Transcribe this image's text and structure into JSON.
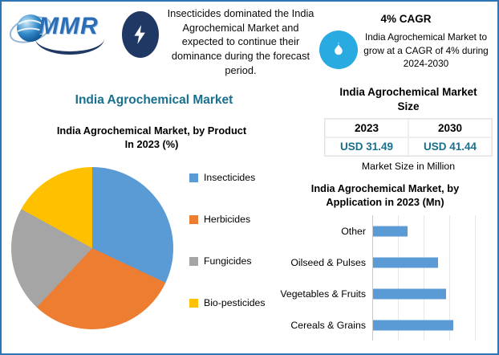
{
  "theme": {
    "border": "#2e75b6",
    "accent": "#17708e",
    "navy": "#1f3864",
    "flame_blue": "#29abe2",
    "logo_blue": "#2d6db5"
  },
  "logo": {
    "text": "MMR",
    "globe_icon": "globe"
  },
  "header": {
    "headline": "Insecticides dominated the India Agrochemical Market and expected to continue their dominance during the forecast period.",
    "bolt_icon": "lightning-bolt",
    "cagr_title": "4% CAGR",
    "flame_icon": "flame",
    "cagr_text": "India Agrochemical Market to grow at a CAGR of 4% during 2024-2030"
  },
  "titles": {
    "main": "India Agrochemical Market",
    "pie_line1": "India Agrochemical Market, by Product",
    "pie_line2": "In 2023 (%)",
    "bar_line1": "India Agrochemical Market, by",
    "bar_line2": "Application in 2023 (Mn)",
    "msize_line1": "India Agrochemical Market",
    "msize_line2": "Size"
  },
  "market_size": {
    "years": [
      "2023",
      "2030"
    ],
    "values": [
      "USD 31.49",
      "USD 41.44"
    ],
    "footnote": "Market Size in Million"
  },
  "chart_data": [
    {
      "type": "pie",
      "title": "India Agrochemical Market, by Product In 2023 (%)",
      "labels": [
        "Insecticides",
        "Herbicides",
        "Fungicides",
        "Bio-pesticides"
      ],
      "values": [
        32,
        30,
        21,
        17
      ],
      "colors": [
        "#5b9bd5",
        "#ed7d31",
        "#a5a5a5",
        "#ffc000"
      ],
      "legend_position": "right",
      "start_angle_deg": 0
    },
    {
      "type": "bar",
      "orientation": "horizontal",
      "title": "India Agrochemical Market, by Application in 2023 (Mn)",
      "categories": [
        "Other",
        "Oilseed & Pulses",
        "Vegetables & Fruits",
        "Cereals & Grains"
      ],
      "values": [
        4.5,
        8.5,
        9.5,
        10.5
      ],
      "xlim": [
        0,
        16
      ],
      "bar_color": "#5b9bd5",
      "grid": true
    }
  ]
}
